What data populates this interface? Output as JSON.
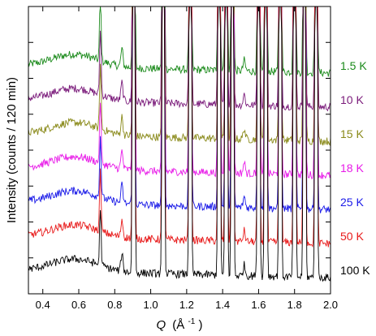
{
  "chart_data": {
    "type": "line",
    "xlabel": {
      "symbol": "Q",
      "unit_open": "(Å",
      "unit_exp": "-1",
      "unit_close": ")"
    },
    "ylabel": "Intensity (counts / 120 min)",
    "xlim": [
      0.32,
      2.0
    ],
    "x_ticks": [
      "0.4",
      "0.6",
      "0.8",
      "1.0",
      "1.2",
      "1.4",
      "1.6",
      "1.8",
      "2.0"
    ],
    "y_ticks": "unlabeled",
    "grid": false,
    "legend_placement": "right, inline labels",
    "series": [
      {
        "name": "1.5 K",
        "color": "#1a8a1a",
        "offset": 6
      },
      {
        "name": "10 K",
        "color": "#7a1a7a",
        "offset": 5
      },
      {
        "name": "15 K",
        "color": "#8a8a1a",
        "offset": 4
      },
      {
        "name": "18 K",
        "color": "#e81ae8",
        "offset": 3
      },
      {
        "name": "25 K",
        "color": "#1a1ae8",
        "offset": 2
      },
      {
        "name": "50 K",
        "color": "#e81a1a",
        "offset": 1
      },
      {
        "name": "100 K",
        "color": "#000000",
        "offset": 0
      }
    ],
    "bragg_peaks_Q": [
      0.72,
      0.905,
      1.07,
      1.22,
      1.38,
      1.42,
      1.455,
      1.6,
      1.64,
      1.72,
      1.8,
      1.855,
      1.92
    ],
    "diffuse_bump_center_Q": 0.58,
    "ylim": [
      0,
      8
    ]
  }
}
